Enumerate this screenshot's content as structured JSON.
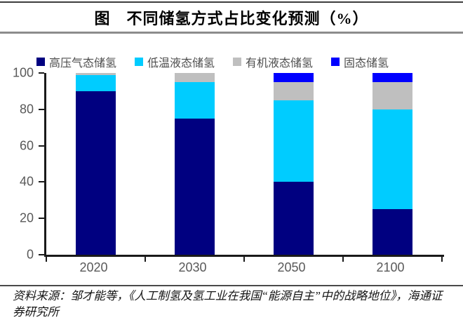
{
  "title": "图　不同储氢方式占比变化预测（%）",
  "colors": {
    "navy": "#000080",
    "cyan": "#00CCFF",
    "gray": "#BFBFBF",
    "blue": "#0000FF",
    "axis": "#1A1A1A",
    "tick_label": "#595959"
  },
  "chart_data": {
    "type": "bar",
    "stacked": true,
    "title": "图　不同储氢方式占比变化预测（%）",
    "categories": [
      "2020",
      "2030",
      "2050",
      "2100"
    ],
    "series": [
      {
        "name": "高压气态储氢",
        "color": "#000080",
        "values": [
          90,
          75,
          40,
          25
        ]
      },
      {
        "name": "低温液态储氢",
        "color": "#00CCFF",
        "values": [
          9,
          20,
          45,
          55
        ]
      },
      {
        "name": "有机液态储氢",
        "color": "#BFBFBF",
        "values": [
          1,
          5,
          10,
          15
        ]
      },
      {
        "name": "固态储氢",
        "color": "#0000FF",
        "values": [
          0,
          0,
          5,
          5
        ]
      }
    ],
    "ylim": [
      0,
      100
    ],
    "yticks": [
      0,
      20,
      40,
      60,
      80,
      100
    ],
    "grid": false,
    "legend_position": "top"
  },
  "source_text": "资料来源：邹才能等，《人工制氢及氢工业在我国“能源自主”中的战略地位》，海通证券研究所"
}
